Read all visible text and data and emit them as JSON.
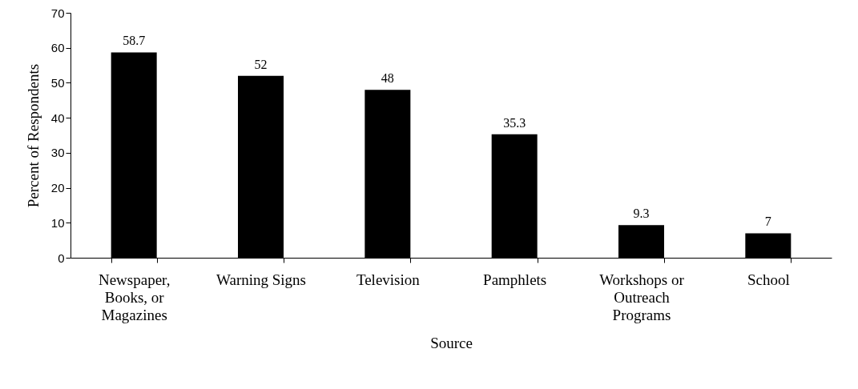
{
  "chart_data": {
    "type": "bar",
    "xlabel": "Source",
    "ylabel": "Percent of Respondents",
    "categories": [
      "Newspaper, Books, or Magazines",
      "Warning Signs",
      "Television",
      "Pamphlets",
      "Workshops or Outreach Programs",
      "School"
    ],
    "values": [
      58.7,
      52,
      48,
      35.3,
      9.3,
      7
    ],
    "color": "#000000",
    "ylim": [
      0,
      70
    ],
    "yticks": [
      0,
      10,
      20,
      30,
      40,
      50,
      60,
      70
    ],
    "data_labels": true,
    "grid": false
  }
}
